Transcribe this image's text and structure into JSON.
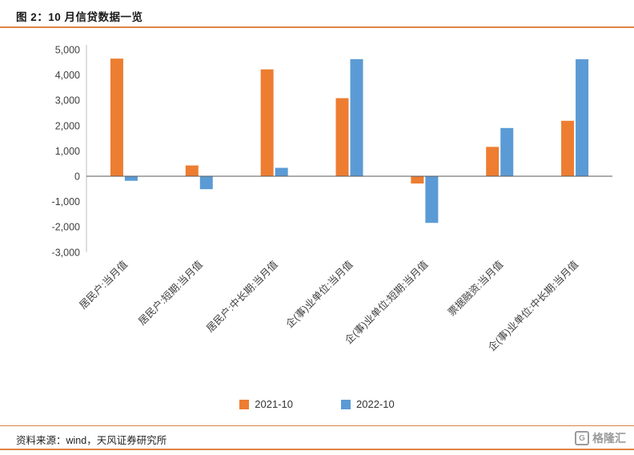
{
  "header": {
    "title": "图 2：10 月信贷数据一览"
  },
  "chart_data": {
    "type": "bar",
    "title": "图 2：10 月信贷数据一览",
    "categories": [
      "居民户:当月值",
      "居民户:短期:当月值",
      "居民户:中长期:当月值",
      "企(事)业单位:当月值",
      "企(事)业单位:短期:当月值",
      "票据融资:当月值",
      "企(事)业单位:中长期:当月值"
    ],
    "series": [
      {
        "name": "2021-10",
        "color": "#ED7D31",
        "values": [
          4647,
          426,
          4221,
          3084,
          -288,
          1160,
          2190
        ]
      },
      {
        "name": "2022-10",
        "color": "#5B9BD5",
        "values": [
          -180,
          -512,
          332,
          4626,
          -1843,
          1905,
          4623
        ]
      }
    ],
    "ylim": [
      -3000,
      5000
    ],
    "ytick_step": 1000,
    "ytick_labels": [
      "-3,000",
      "-2,000",
      "-1,000",
      "0",
      "1,000",
      "2,000",
      "3,000",
      "4,000",
      "5,000"
    ],
    "grid": false,
    "legend_position": "bottom"
  },
  "footer": {
    "source": "资料来源：wind，天风证券研究所",
    "watermark": "格隆汇"
  },
  "colors": {
    "accent_line": "#DE8344",
    "series_2021": "#ED7D31",
    "series_2022": "#5B9BD5",
    "axis_text": "#404040",
    "zero_line": "#595959",
    "watermark_gray": "#9B9B9B"
  }
}
